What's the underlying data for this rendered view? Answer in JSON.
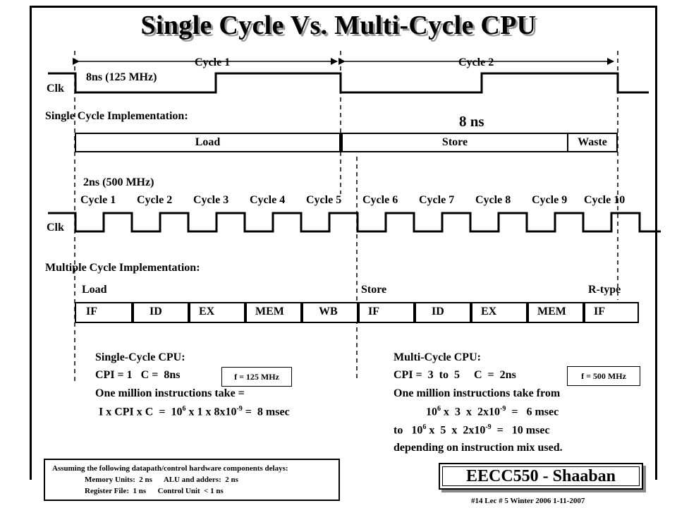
{
  "title": "Single Cycle Vs.  Multi-Cycle CPU",
  "single": {
    "clk_label": "Clk",
    "period_label": "8ns (125 MHz)",
    "cycle_labels": [
      "Cycle 1",
      "Cycle 2"
    ],
    "impl_label": "Single Cycle Implementation:",
    "duration_label": "8 ns",
    "segments": [
      "Load",
      "Store",
      "Waste"
    ]
  },
  "multi": {
    "period_label": "2ns  (500 MHz)",
    "cycle_labels": [
      "Cycle 1",
      "Cycle 2",
      "Cycle 3",
      "Cycle 4",
      "Cycle 5",
      "Cycle 6",
      "Cycle 7",
      "Cycle 8",
      "Cycle 9",
      "Cycle 10"
    ],
    "clk_label": "Clk",
    "impl_label": "Multiple Cycle Implementation:",
    "group_labels": [
      "Load",
      "Store",
      "R-type"
    ],
    "stages": [
      "IF",
      "ID",
      "EX",
      "MEM",
      "WB",
      "IF",
      "ID",
      "EX",
      "MEM",
      "IF"
    ]
  },
  "single_cpu_text": {
    "heading": "Single-Cycle CPU:",
    "cpi_line": "CPI = 1   C =  8ns",
    "freq_badge": "f = 125 MHz",
    "line3": "One million instructions take =",
    "line4_pre": "I x CPI x C  =  10",
    "line4_exp1": "6",
    "line4_mid": " x 1 x 8x10",
    "line4_exp2": "-9",
    "line4_post": " =  8 msec"
  },
  "multi_cpu_text": {
    "heading": "Multi-Cycle CPU:",
    "cpi_line": "CPI =  3  to  5     C  =  2ns",
    "freq_badge": "f = 500 MHz",
    "line3": "One million instructions take from",
    "line4_pre": "10",
    "line4_exp1": "6",
    "line4_mid": " x  3  x  2x10",
    "line4_exp2": "-9",
    "line4_post": "  =   6 msec",
    "line5_pre": "to   10",
    "line5_exp1": "6",
    "line5_mid": " x  5  x  2x10",
    "line5_exp2": "-9",
    "line5_post": "  =   10 msec",
    "line6": "depending on instruction mix used."
  },
  "footer": {
    "assumption_line": "Assuming the following datapath/control hardware components delays:",
    "row1": "Memory Units:  2 ns      ALU and adders:  2 ns",
    "row2": "Register File:  1 ns      Control Unit  < 1 ns",
    "brand": "EECC550 - Shaaban",
    "lecture_info": "#14   Lec # 5  Winter 2006  1-11-2007"
  }
}
